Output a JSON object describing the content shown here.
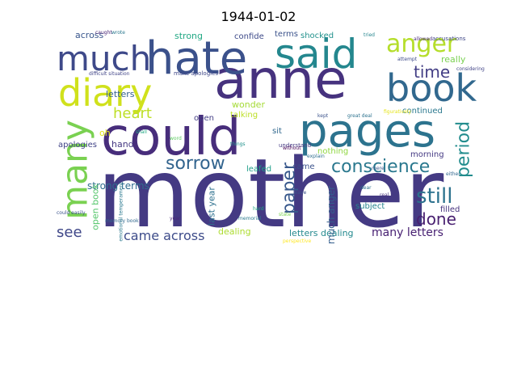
{
  "figure": {
    "title": "1944-01-02"
  },
  "wordcloud": {
    "palette": "viridis",
    "background": "#ffffff",
    "words": [
      {
        "text": "mother",
        "color": "#443a83"
      },
      {
        "text": "anne",
        "color": "#46327e"
      },
      {
        "text": "could",
        "color": "#472d7b"
      },
      {
        "text": "pages",
        "color": "#2c738e"
      },
      {
        "text": "said",
        "color": "#24878e"
      },
      {
        "text": "hate",
        "color": "#3b518b"
      },
      {
        "text": "much",
        "color": "#3e4989"
      },
      {
        "text": "diary",
        "color": "#d0e11c"
      },
      {
        "text": "many",
        "color": "#7ad151"
      },
      {
        "text": "book",
        "color": "#31688e"
      },
      {
        "text": "anger",
        "color": "#b5de2b"
      },
      {
        "text": "conscience",
        "color": "#2a788e"
      },
      {
        "text": "sorrow",
        "color": "#32648e"
      },
      {
        "text": "heart",
        "color": "#bddf26"
      },
      {
        "text": "period",
        "color": "#228c8d"
      },
      {
        "text": "still",
        "color": "#2c728e"
      },
      {
        "text": "time",
        "color": "#433e85"
      },
      {
        "text": "paper",
        "color": "#38588c"
      },
      {
        "text": "done",
        "color": "#481f70"
      },
      {
        "text": "see",
        "color": "#3f4788"
      },
      {
        "text": "came across",
        "color": "#3e4c8a"
      },
      {
        "text": "letters",
        "color": "#34618d"
      },
      {
        "text": "many letters",
        "color": "#482173"
      },
      {
        "text": "strong terms",
        "color": "#2f6c8e"
      },
      {
        "text": "letters dealing",
        "color": "#23898e"
      },
      {
        "text": "open book",
        "color": "#52c569"
      },
      {
        "text": "much anger",
        "color": "#355f8d"
      },
      {
        "text": "across",
        "color": "#39568c"
      },
      {
        "text": "strong",
        "color": "#22a884"
      },
      {
        "text": "confide",
        "color": "#3e4a89"
      },
      {
        "text": "terms",
        "color": "#3b528b"
      },
      {
        "text": "shocked",
        "color": "#21918c"
      },
      {
        "text": "really",
        "color": "#7ad151"
      },
      {
        "text": "wonder",
        "color": "#a5db36"
      },
      {
        "text": "talking",
        "color": "#bddf26"
      },
      {
        "text": "continued",
        "color": "#2a788e"
      },
      {
        "text": "morning",
        "color": "#443983"
      },
      {
        "text": "nothing",
        "color": "#90d743"
      },
      {
        "text": "open",
        "color": "#433e85"
      },
      {
        "text": "sit",
        "color": "#31688e"
      },
      {
        "text": "came",
        "color": "#3b528b"
      },
      {
        "text": "leafed",
        "color": "#1f9e89"
      },
      {
        "text": "hand",
        "color": "#453882"
      },
      {
        "text": "oh",
        "color": "#e5e419"
      },
      {
        "text": "apologies",
        "color": "#414487"
      },
      {
        "text": "last year",
        "color": "#2d708e"
      },
      {
        "text": "subject",
        "color": "#25848e"
      },
      {
        "text": "filled",
        "color": "#46327e"
      },
      {
        "text": "dealing",
        "color": "#addc30"
      },
      {
        "text": "understand",
        "color": "#443a83"
      },
      {
        "text": "explain",
        "color": "#2e6e8e"
      },
      {
        "text": "make apologies",
        "color": "#3f4889"
      },
      {
        "text": "figuratively",
        "color": "#e5e419"
      },
      {
        "text": "accusations",
        "color": "#3f4788"
      },
      {
        "text": "allowed",
        "color": "#482878"
      },
      {
        "text": "attempt",
        "color": "#3e4a89"
      },
      {
        "text": "tried",
        "color": "#25858e"
      },
      {
        "text": "caught",
        "color": "#482475"
      },
      {
        "text": "wrote",
        "color": "#2a788e"
      },
      {
        "text": "could easily",
        "color": "#3b528b"
      },
      {
        "text": "memory book",
        "color": "#31688e"
      },
      {
        "text": "hard",
        "color": "#22a884"
      },
      {
        "text": "leave",
        "color": "#3b528b"
      },
      {
        "text": "dear",
        "color": "#2c728e"
      },
      {
        "text": "real",
        "color": "#46327e"
      },
      {
        "text": "things",
        "color": "#21918c"
      },
      {
        "text": "mere",
        "color": "#38588c"
      },
      {
        "text": "word",
        "color": "#5ec962"
      },
      {
        "text": "without",
        "color": "#440154"
      },
      {
        "text": "kept",
        "color": "#3b528b"
      },
      {
        "text": "great deal",
        "color": "#2c728e"
      },
      {
        "text": "considering",
        "color": "#414487"
      },
      {
        "text": "either",
        "color": "#31688e"
      },
      {
        "text": "year",
        "color": "#482878"
      },
      {
        "text": "memorial",
        "color": "#2a788e"
      },
      {
        "text": "shall",
        "color": "#22a884"
      },
      {
        "text": "state",
        "color": "#7ad151"
      },
      {
        "text": "difficult situation",
        "color": "#414487"
      },
      {
        "text": "emotional temperament",
        "color": "#2a788e"
      },
      {
        "text": "perspective",
        "color": "#fde725"
      }
    ]
  }
}
